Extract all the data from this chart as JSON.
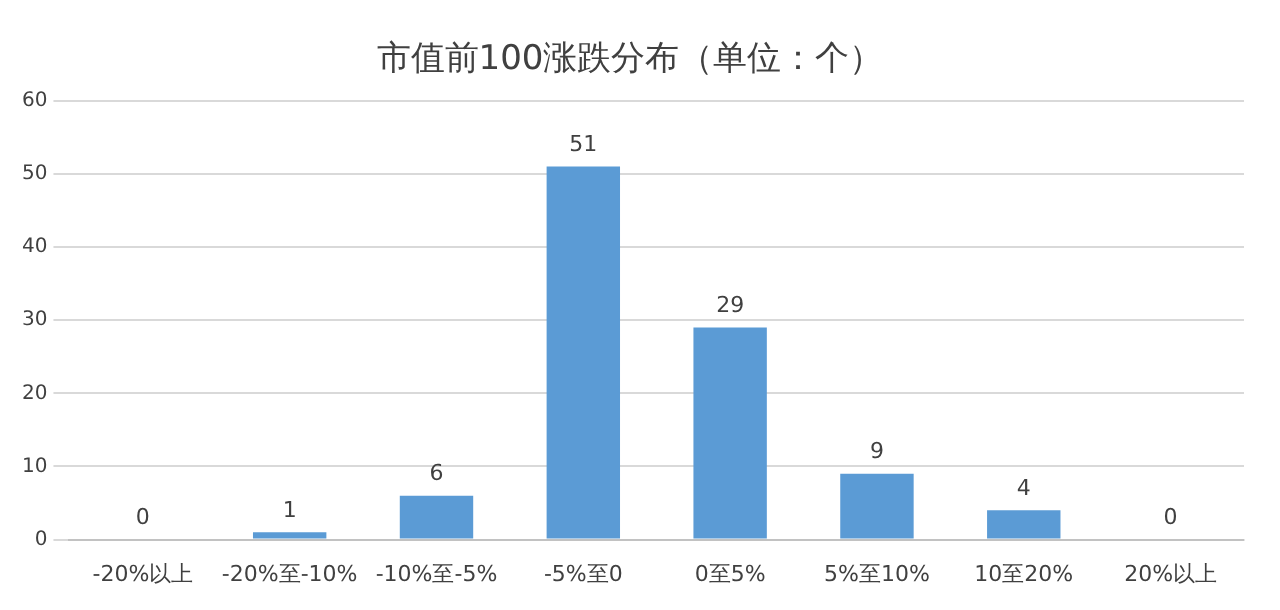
{
  "chart_data": {
    "type": "bar",
    "title": "市值前100涨跌分布（单位：个）",
    "categories": [
      "-20%以上",
      "-20%至-10%",
      "-10%至-5%",
      "-5%至0",
      "0至5%",
      "5%至10%",
      "10至20%",
      "20%以上"
    ],
    "values": [
      0,
      1,
      6,
      51,
      29,
      9,
      4,
      0
    ],
    "color": "#5b9bd5",
    "ylim": [
      0,
      60
    ],
    "yticks": [
      0,
      10,
      20,
      30,
      40,
      50,
      60
    ],
    "grid": "y",
    "data_labels": true
  }
}
